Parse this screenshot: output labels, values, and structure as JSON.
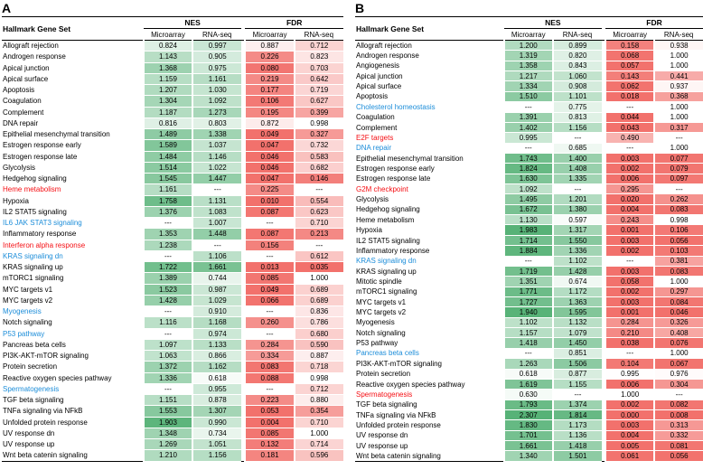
{
  "panels": [
    {
      "label": "A"
    },
    {
      "label": "B"
    }
  ],
  "colors": {
    "nes_green_max": "#57b277",
    "fdr_red_max": "#f2716c",
    "label_red": "#f50f14",
    "label_blue": "#1c8dd9",
    "rule_black": "#000000"
  },
  "chart_data": [
    {
      "type": "table",
      "panel": "A",
      "gene_set_header": "Hallmark Gene Set",
      "group_headers": [
        "NES",
        "FDR"
      ],
      "sub_headers": [
        "Microarray",
        "RNA-seq",
        "Microarray",
        "RNA-seq"
      ],
      "missing_marker": "---",
      "heatmap": {
        "nes_scale": "white-to-green",
        "fdr_scale": "red-to-white"
      },
      "rows": [
        {
          "gene_set": "Allograft rejection",
          "label_color": "black",
          "values": [
            "0.824",
            "0.997",
            "0.887",
            "0.712"
          ]
        },
        {
          "gene_set": "Androgen response",
          "label_color": "black",
          "values": [
            "1.143",
            "0.905",
            "0.226",
            "0.823"
          ]
        },
        {
          "gene_set": "Apical junction",
          "label_color": "black",
          "values": [
            "1.368",
            "0.975",
            "0.080",
            "0.703"
          ]
        },
        {
          "gene_set": "Apical surface",
          "label_color": "black",
          "values": [
            "1.159",
            "1.161",
            "0.219",
            "0.642"
          ]
        },
        {
          "gene_set": "Apoptosis",
          "label_color": "black",
          "values": [
            "1.207",
            "1.030",
            "0.177",
            "0.719"
          ]
        },
        {
          "gene_set": "Coagulation",
          "label_color": "black",
          "values": [
            "1.304",
            "1.092",
            "0.106",
            "0.627"
          ]
        },
        {
          "gene_set": "Complement",
          "label_color": "black",
          "values": [
            "1.187",
            "1.273",
            "0.195",
            "0.399"
          ]
        },
        {
          "gene_set": "DNA repair",
          "label_color": "black",
          "values": [
            "0.816",
            "0.803",
            "0.872",
            "0.998"
          ]
        },
        {
          "gene_set": "Epithelial mesenchymal transition",
          "label_color": "black",
          "values": [
            "1.489",
            "1.338",
            "0.049",
            "0.327"
          ]
        },
        {
          "gene_set": "Estrogen response early",
          "label_color": "black",
          "values": [
            "1.589",
            "1.037",
            "0.047",
            "0.732"
          ]
        },
        {
          "gene_set": "Estrogen response late",
          "label_color": "black",
          "values": [
            "1.484",
            "1.146",
            "0.046",
            "0.583"
          ]
        },
        {
          "gene_set": "Glycolysis",
          "label_color": "black",
          "values": [
            "1.514",
            "1.022",
            "0.046",
            "0.682"
          ]
        },
        {
          "gene_set": "Hedgehog signaling",
          "label_color": "black",
          "values": [
            "1.545",
            "1.447",
            "0.047",
            "0.146"
          ]
        },
        {
          "gene_set": "Heme metabolism",
          "label_color": "red",
          "values": [
            "1.161",
            "---",
            "0.225",
            "---"
          ]
        },
        {
          "gene_set": "Hypoxia",
          "label_color": "black",
          "values": [
            "1.758",
            "1.131",
            "0.010",
            "0.554"
          ]
        },
        {
          "gene_set": "IL2 STAT5 signaling",
          "label_color": "black",
          "values": [
            "1.376",
            "1.083",
            "0.087",
            "0.623"
          ]
        },
        {
          "gene_set": "IL6 JAK STAT3 signaling",
          "label_color": "blue",
          "values": [
            "---",
            "1.007",
            "---",
            "0.710"
          ]
        },
        {
          "gene_set": "Inflammatory response",
          "label_color": "black",
          "values": [
            "1.353",
            "1.448",
            "0.087",
            "0.213"
          ]
        },
        {
          "gene_set": "Interferon alpha response",
          "label_color": "red",
          "values": [
            "1.238",
            "---",
            "0.156",
            "---"
          ]
        },
        {
          "gene_set": "KRAS signaling dn",
          "label_color": "blue",
          "values": [
            "---",
            "1.106",
            "---",
            "0.612"
          ]
        },
        {
          "gene_set": "KRAS signaling up",
          "label_color": "black",
          "values": [
            "1.722",
            "1.661",
            "0.013",
            "0.035"
          ]
        },
        {
          "gene_set": "mTORC1 signaling",
          "label_color": "black",
          "values": [
            "1.389",
            "0.744",
            "0.085",
            "1.000"
          ]
        },
        {
          "gene_set": "MYC targets v1",
          "label_color": "black",
          "values": [
            "1.523",
            "0.987",
            "0.049",
            "0.689"
          ]
        },
        {
          "gene_set": "MYC targets v2",
          "label_color": "black",
          "values": [
            "1.428",
            "1.029",
            "0.066",
            "0.689"
          ]
        },
        {
          "gene_set": "Myogenesis",
          "label_color": "blue",
          "values": [
            "---",
            "0.910",
            "---",
            "0.836"
          ]
        },
        {
          "gene_set": "Notch signaling",
          "label_color": "black",
          "values": [
            "1.116",
            "1.168",
            "0.260",
            "0.786"
          ]
        },
        {
          "gene_set": "P53 pathway",
          "label_color": "blue",
          "values": [
            "---",
            "0.974",
            "---",
            "0.680"
          ]
        },
        {
          "gene_set": "Pancreas beta cells",
          "label_color": "black",
          "values": [
            "1.097",
            "1.133",
            "0.284",
            "0.590"
          ]
        },
        {
          "gene_set": "PI3K-AKT-mTOR signaling",
          "label_color": "black",
          "values": [
            "1.063",
            "0.866",
            "0.334",
            "0.887"
          ]
        },
        {
          "gene_set": "Protein secretion",
          "label_color": "black",
          "values": [
            "1.372",
            "1.162",
            "0.083",
            "0.718"
          ]
        },
        {
          "gene_set": "Reactive oxygen species pathway",
          "label_color": "black",
          "values": [
            "1.336",
            "0.618",
            "0.088",
            "0.998"
          ]
        },
        {
          "gene_set": "Spermatogenesis",
          "label_color": "blue",
          "values": [
            "---",
            "0.955",
            "---",
            "0.712"
          ]
        },
        {
          "gene_set": "TGF beta signaling",
          "label_color": "black",
          "values": [
            "1.151",
            "0.878",
            "0.223",
            "0.880"
          ]
        },
        {
          "gene_set": "TNFa signaling via NFkB",
          "label_color": "black",
          "values": [
            "1.553",
            "1.307",
            "0.053",
            "0.354"
          ]
        },
        {
          "gene_set": "Unfolded protein response",
          "label_color": "black",
          "values": [
            "1.903",
            "0.990",
            "0.004",
            "0.710"
          ]
        },
        {
          "gene_set": "UV response dn",
          "label_color": "black",
          "values": [
            "1.348",
            "0.734",
            "0.085",
            "1.000"
          ]
        },
        {
          "gene_set": "UV response up",
          "label_color": "black",
          "values": [
            "1.269",
            "1.051",
            "0.132",
            "0.714"
          ]
        },
        {
          "gene_set": "Wnt beta catenin signaling",
          "label_color": "black",
          "values": [
            "1.210",
            "1.156",
            "0.181",
            "0.596"
          ]
        }
      ]
    },
    {
      "type": "table",
      "panel": "B",
      "gene_set_header": "Hallmark Gene Set",
      "group_headers": [
        "NES",
        "FDR"
      ],
      "sub_headers": [
        "Microarray",
        "RNA-seq",
        "Microarray",
        "RNA-seq"
      ],
      "missing_marker": "---",
      "heatmap": {
        "nes_scale": "white-to-green",
        "fdr_scale": "red-to-white"
      },
      "rows": [
        {
          "gene_set": "Allograft rejection",
          "label_color": "black",
          "values": [
            "1.200",
            "0.899",
            "0.158",
            "0.938"
          ]
        },
        {
          "gene_set": "Androgen response",
          "label_color": "black",
          "values": [
            "1.319",
            "0.820",
            "0.068",
            "1.000"
          ]
        },
        {
          "gene_set": "Angiogenesis",
          "label_color": "black",
          "values": [
            "1.358",
            "0.843",
            "0.057",
            "1.000"
          ]
        },
        {
          "gene_set": "Apical junction",
          "label_color": "black",
          "values": [
            "1.217",
            "1.060",
            "0.143",
            "0.441"
          ]
        },
        {
          "gene_set": "Apical surface",
          "label_color": "black",
          "values": [
            "1.334",
            "0.908",
            "0.062",
            "0.937"
          ]
        },
        {
          "gene_set": "Apoptosis",
          "label_color": "black",
          "values": [
            "1.510",
            "1.101",
            "0.018",
            "0.368"
          ]
        },
        {
          "gene_set": "Cholesterol homeostasis",
          "label_color": "blue",
          "values": [
            "---",
            "0.775",
            "---",
            "1.000"
          ]
        },
        {
          "gene_set": "Coagulation",
          "label_color": "black",
          "values": [
            "1.391",
            "0.813",
            "0.044",
            "1.000"
          ]
        },
        {
          "gene_set": "Complement",
          "label_color": "black",
          "values": [
            "1.402",
            "1.156",
            "0.043",
            "0.317"
          ]
        },
        {
          "gene_set": "E2F targets",
          "label_color": "red",
          "values": [
            "0.995",
            "---",
            "0.490",
            "---"
          ]
        },
        {
          "gene_set": "DNA repair",
          "label_color": "blue",
          "values": [
            "---",
            "0.685",
            "---",
            "1.000"
          ]
        },
        {
          "gene_set": "Epithelial mesenchymal transition",
          "label_color": "black",
          "values": [
            "1.743",
            "1.400",
            "0.003",
            "0.077"
          ]
        },
        {
          "gene_set": "Estrogen response early",
          "label_color": "black",
          "values": [
            "1.824",
            "1.408",
            "0.002",
            "0.079"
          ]
        },
        {
          "gene_set": "Estrogen response late",
          "label_color": "black",
          "values": [
            "1.630",
            "1.335",
            "0.006",
            "0.097"
          ]
        },
        {
          "gene_set": "G2M checkpoint",
          "label_color": "red",
          "values": [
            "1.092",
            "---",
            "0.295",
            "---"
          ]
        },
        {
          "gene_set": "Glycolysis",
          "label_color": "black",
          "values": [
            "1.495",
            "1.201",
            "0.020",
            "0.262"
          ]
        },
        {
          "gene_set": "Hedgehog signaling",
          "label_color": "black",
          "values": [
            "1.672",
            "1.380",
            "0.004",
            "0.083"
          ]
        },
        {
          "gene_set": "Heme metabolism",
          "label_color": "black",
          "values": [
            "1.130",
            "0.597",
            "0.243",
            "0.998"
          ]
        },
        {
          "gene_set": "Hypoxia",
          "label_color": "black",
          "values": [
            "1.983",
            "1.317",
            "0.001",
            "0.106"
          ]
        },
        {
          "gene_set": "IL2 STAT5 signaling",
          "label_color": "black",
          "values": [
            "1.714",
            "1.550",
            "0.003",
            "0.056"
          ]
        },
        {
          "gene_set": "Inflammatory response",
          "label_color": "black",
          "values": [
            "1.884",
            "1.336",
            "0.002",
            "0.103"
          ]
        },
        {
          "gene_set": "KRAS signaling dn",
          "label_color": "blue",
          "values": [
            "---",
            "1.102",
            "---",
            "0.381"
          ]
        },
        {
          "gene_set": "KRAS signaling up",
          "label_color": "black",
          "values": [
            "1.719",
            "1.428",
            "0.003",
            "0.083"
          ]
        },
        {
          "gene_set": "Mitotic spindle",
          "label_color": "black",
          "values": [
            "1.351",
            "0.674",
            "0.058",
            "1.000"
          ]
        },
        {
          "gene_set": "mTORC1 signaling",
          "label_color": "black",
          "values": [
            "1.771",
            "1.172",
            "0.002",
            "0.297"
          ]
        },
        {
          "gene_set": "MYC targets v1",
          "label_color": "black",
          "values": [
            "1.727",
            "1.363",
            "0.003",
            "0.084"
          ]
        },
        {
          "gene_set": "MYC targets v2",
          "label_color": "black",
          "values": [
            "1.940",
            "1.595",
            "0.001",
            "0.046"
          ]
        },
        {
          "gene_set": "Myogenesis",
          "label_color": "black",
          "values": [
            "1.102",
            "1.132",
            "0.284",
            "0.326"
          ]
        },
        {
          "gene_set": "Notch signaling",
          "label_color": "black",
          "values": [
            "1.157",
            "1.079",
            "0.210",
            "0.408"
          ]
        },
        {
          "gene_set": "P53 pathway",
          "label_color": "black",
          "values": [
            "1.418",
            "1.450",
            "0.038",
            "0.076"
          ]
        },
        {
          "gene_set": "Pancreas beta cells",
          "label_color": "blue",
          "values": [
            "---",
            "0.851",
            "---",
            "1.000"
          ]
        },
        {
          "gene_set": "PI3K-AKT-mTOR signaling",
          "label_color": "black",
          "values": [
            "1.263",
            "1.506",
            "0.104",
            "0.067"
          ]
        },
        {
          "gene_set": "Protein secretion",
          "label_color": "black",
          "values": [
            "0.618",
            "0.877",
            "0.995",
            "0.976"
          ]
        },
        {
          "gene_set": "Reactive oxygen species pathway",
          "label_color": "black",
          "values": [
            "1.619",
            "1.155",
            "0.006",
            "0.304"
          ]
        },
        {
          "gene_set": "Spermatogenesis",
          "label_color": "red",
          "values": [
            "0.630",
            "---",
            "1.000",
            "---"
          ]
        },
        {
          "gene_set": "TGF beta signaling",
          "label_color": "black",
          "values": [
            "1.793",
            "1.374",
            "0.002",
            "0.082"
          ]
        },
        {
          "gene_set": "TNFa signaling via NFkB",
          "label_color": "black",
          "values": [
            "2.307",
            "1.814",
            "0.000",
            "0.008"
          ]
        },
        {
          "gene_set": "Unfolded protein response",
          "label_color": "black",
          "values": [
            "1.830",
            "1.173",
            "0.003",
            "0.313"
          ]
        },
        {
          "gene_set": "UV response dn",
          "label_color": "black",
          "values": [
            "1.701",
            "1.136",
            "0.004",
            "0.332"
          ]
        },
        {
          "gene_set": "UV response up",
          "label_color": "black",
          "values": [
            "1.661",
            "1.418",
            "0.005",
            "0.081"
          ]
        },
        {
          "gene_set": "Wnt beta catenin signaling",
          "label_color": "black",
          "values": [
            "1.340",
            "1.501",
            "0.061",
            "0.056"
          ]
        }
      ]
    }
  ]
}
